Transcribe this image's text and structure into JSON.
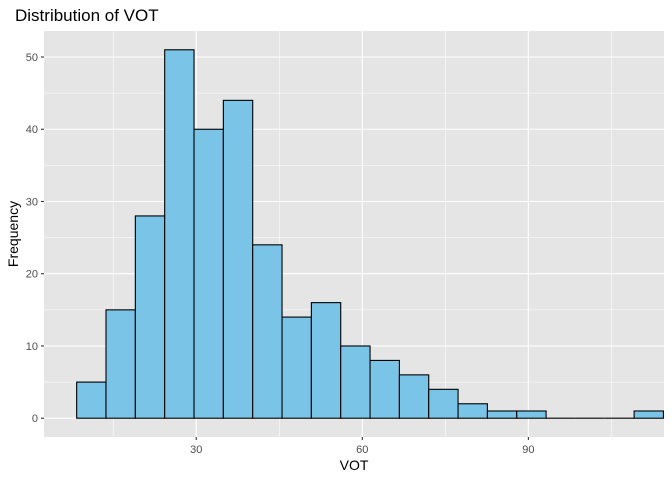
{
  "chart_data": {
    "type": "bar",
    "title": "Distribution of VOT",
    "xlabel": "VOT",
    "ylabel": "Frequency",
    "bin_width": 5.3,
    "bin_start": 8.4,
    "values": [
      5,
      15,
      28,
      51,
      40,
      44,
      24,
      14,
      16,
      10,
      8,
      6,
      4,
      2,
      1,
      1,
      0,
      0,
      0,
      1
    ],
    "xlim": [
      2.5,
      114.5
    ],
    "ylim": [
      -2.6,
      53.6
    ],
    "x_ticks": [
      30,
      60,
      90
    ],
    "y_ticks": [
      0,
      10,
      20,
      30,
      40,
      50
    ],
    "grid": true,
    "colors": {
      "panel": "#e5e5e5",
      "grid_major": "#ffffff",
      "bar_fill": "#79c4e7",
      "bar_stroke": "#000000",
      "tick_text": "#4d4d4d"
    }
  }
}
